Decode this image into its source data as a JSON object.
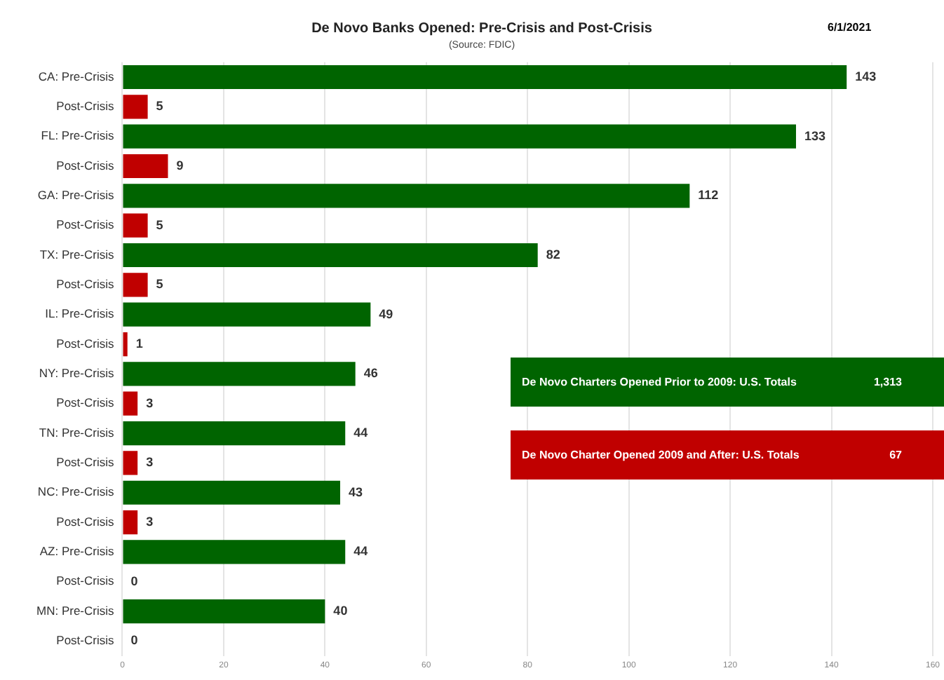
{
  "chart_data": {
    "type": "bar",
    "orientation": "horizontal",
    "title": "De Novo Banks Opened: Pre-Crisis and Post-Crisis",
    "subtitle": "(Source: FDIC)",
    "categories": [
      "CA: Pre-Crisis",
      "Post-Crisis",
      "FL: Pre-Crisis",
      "Post-Crisis",
      "GA: Pre-Crisis",
      "Post-Crisis",
      "TX: Pre-Crisis",
      "Post-Crisis",
      "IL: Pre-Crisis",
      "Post-Crisis",
      "NY: Pre-Crisis",
      "Post-Crisis",
      "TN: Pre-Crisis",
      "Post-Crisis",
      "NC: Pre-Crisis",
      "Post-Crisis",
      "AZ: Pre-Crisis",
      "Post-Crisis",
      "MN: Pre-Crisis",
      "Post-Crisis"
    ],
    "values": [
      143,
      5,
      133,
      9,
      112,
      5,
      82,
      5,
      49,
      1,
      46,
      3,
      44,
      3,
      43,
      3,
      44,
      0,
      40,
      0
    ],
    "colors": [
      "#006400",
      "#c00000",
      "#006400",
      "#c00000",
      "#006400",
      "#c00000",
      "#006400",
      "#c00000",
      "#006400",
      "#c00000",
      "#006400",
      "#c00000",
      "#006400",
      "#c00000",
      "#006400",
      "#c00000",
      "#006400",
      "#c00000",
      "#006400",
      "#c00000"
    ],
    "xlim": [
      0,
      160
    ],
    "xticks": [
      0,
      20,
      40,
      60,
      80,
      100,
      120,
      140,
      160
    ],
    "grid": "x",
    "data_labels": true,
    "annotations": [
      "6/1/2021",
      "De Novo  Charters Opened Prior to 2009: U.S. Totals",
      "1,313",
      "De Novo Charter Opened 2009 and After: U.S. Totals",
      "67"
    ]
  }
}
